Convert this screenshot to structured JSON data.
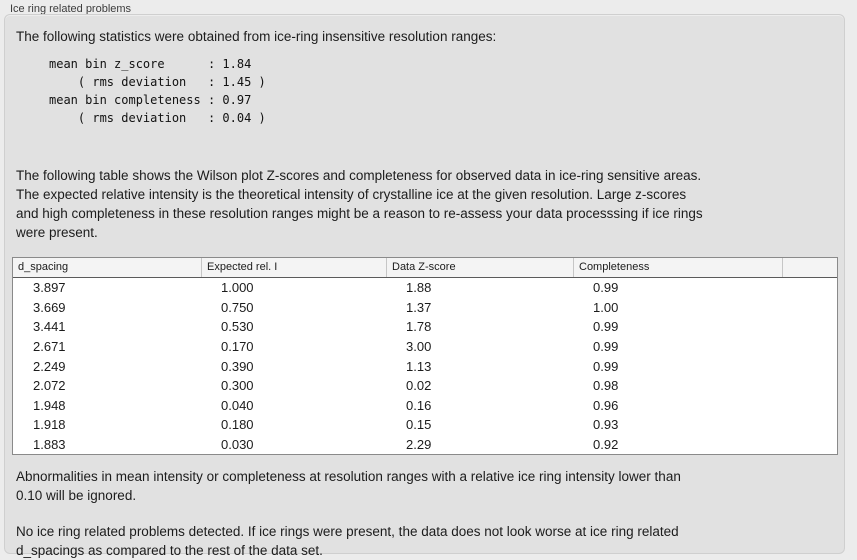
{
  "window": {
    "group_label": "Ice ring related problems"
  },
  "panel": {
    "intro": "The following statistics were obtained from ice-ring insensitive resolution ranges:",
    "stats_block": "mean bin z_score      : 1.84\n    ( rms deviation   : 1.45 )\nmean bin completeness : 0.97\n    ( rms deviation   : 0.04 )",
    "stats": {
      "mean_bin_z_score": "1.84",
      "z_score_rms_deviation": "1.45",
      "mean_bin_completeness": "0.97",
      "completeness_rms_deviation": "0.04"
    },
    "table_description": "The following table shows the Wilson plot Z-scores and completeness for observed data in ice-ring sensitive areas.\nThe expected relative intensity is the theoretical intensity of crystalline ice at the given resolution. Large z-scores\nand high completeness in these resolution ranges might be a reason to re-assess your data processsing if ice rings\nwere present.",
    "ignore_note": "Abnormalities in mean intensity or completeness at resolution ranges with a relative ice ring intensity lower than\n0.10 will be ignored.",
    "conclusion": "No ice ring related problems detected. If ice rings were present, the data does not look worse at ice ring related\nd_spacings as compared to the rest of the data set."
  },
  "table": {
    "columns": [
      "d_spacing",
      "Expected rel. I",
      "Data Z-score",
      "Completeness"
    ],
    "rows": [
      [
        "3.897",
        "1.000",
        "1.88",
        "0.99"
      ],
      [
        "3.669",
        "0.750",
        "1.37",
        "1.00"
      ],
      [
        "3.441",
        "0.530",
        "1.78",
        "0.99"
      ],
      [
        "2.671",
        "0.170",
        "3.00",
        "0.99"
      ],
      [
        "2.249",
        "0.390",
        "1.13",
        "0.99"
      ],
      [
        "2.072",
        "0.300",
        "0.02",
        "0.98"
      ],
      [
        "1.948",
        "0.040",
        "0.16",
        "0.96"
      ],
      [
        "1.918",
        "0.180",
        "0.15",
        "0.93"
      ],
      [
        "1.883",
        "0.030",
        "2.29",
        "0.92"
      ]
    ]
  },
  "colors": {
    "page_background": "#ececec",
    "panel_background": "#e1e1e1",
    "panel_border": "#cfcfcf",
    "table_background": "#ffffff",
    "table_border": "#8a8a8a",
    "header_background": "#f4f4f4",
    "text": "#1c1c1c"
  }
}
